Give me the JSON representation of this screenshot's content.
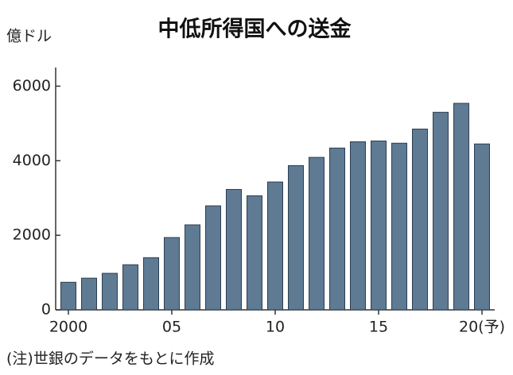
{
  "chart_data": {
    "type": "bar",
    "title": "中低所得国への送金",
    "y_unit": "億ドル",
    "note": "(注)世銀のデータをもとに作成",
    "categories": [
      "2000",
      null,
      null,
      null,
      null,
      "05",
      null,
      null,
      null,
      null,
      "10",
      null,
      null,
      null,
      null,
      "15",
      null,
      null,
      null,
      null,
      "20(予)"
    ],
    "values": [
      740,
      850,
      980,
      1210,
      1400,
      1940,
      2280,
      2790,
      3230,
      3060,
      3430,
      3870,
      4090,
      4340,
      4510,
      4530,
      4470,
      4850,
      5300,
      5540,
      4450
    ],
    "color": "#5f7a93",
    "ylim": [
      0,
      6500
    ],
    "yticks": [
      0,
      2000,
      4000,
      6000
    ],
    "grid": false
  }
}
